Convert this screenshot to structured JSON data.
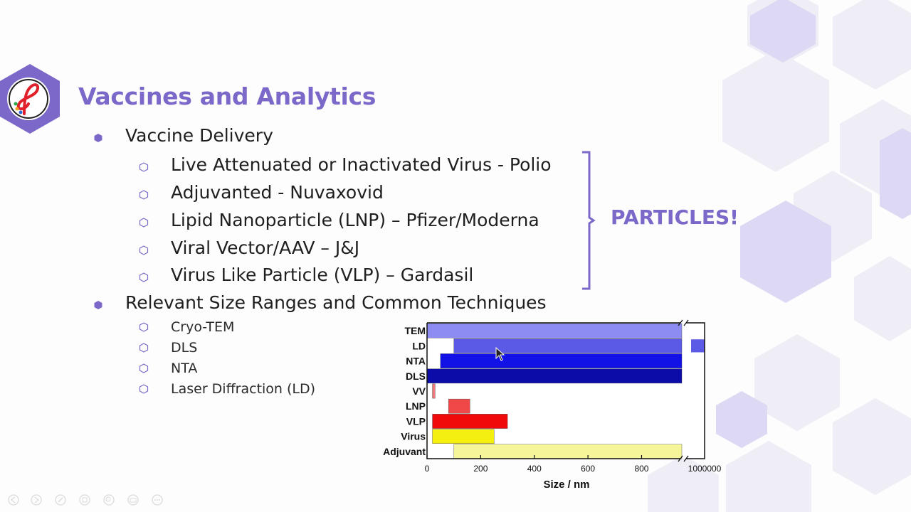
{
  "slide": {
    "title": "Vaccines and Analytics",
    "particles_label": "PARTICLES!",
    "accent_color": "#7b68c9",
    "bullets": [
      {
        "text": "Vaccine Delivery",
        "subitems": [
          "Live Attenuated or Inactivated Virus - Polio",
          "Adjuvanted - Nuvaxovid",
          "Lipid Nanoparticle (LNP) – Pfizer/Moderna",
          "Viral Vector/AAV – J&J",
          "Virus Like Particle (VLP) – Gardasil"
        ]
      },
      {
        "text": "Relevant Size Ranges and Common Techniques",
        "subitems": [
          "Cryo-TEM",
          "DLS",
          "NTA",
          "Laser Diffraction (LD)"
        ]
      }
    ]
  },
  "chart_data": {
    "type": "bar",
    "orientation": "horizontal-range",
    "xlabel": "Size / nm",
    "xlim": [
      0,
      950
    ],
    "xticks": [
      0,
      200,
      400,
      600,
      800
    ],
    "x_break_tick": "1000000",
    "grid": false,
    "categories": [
      "TEM",
      "LD",
      "NTA",
      "DLS",
      "VV",
      "LNP",
      "VLP",
      "Virus",
      "Adjuvant"
    ],
    "ranges": [
      {
        "label": "TEM",
        "start": 0,
        "end": 950,
        "extends_past_break": false,
        "color": "#8c8cf2"
      },
      {
        "label": "LD",
        "start": 100,
        "end": 950,
        "extends_past_break": true,
        "color": "#5a5ae6"
      },
      {
        "label": "NTA",
        "start": 50,
        "end": 950,
        "extends_past_break": false,
        "color": "#1212e6"
      },
      {
        "label": "DLS",
        "start": 1,
        "end": 950,
        "extends_past_break": false,
        "color": "#0c0ca8"
      },
      {
        "label": "VV",
        "start": 20,
        "end": 30,
        "extends_past_break": false,
        "color": "#f07878"
      },
      {
        "label": "LNP",
        "start": 80,
        "end": 160,
        "extends_past_break": false,
        "color": "#f04848"
      },
      {
        "label": "VLP",
        "start": 20,
        "end": 300,
        "extends_past_break": false,
        "color": "#f00a0a"
      },
      {
        "label": "Virus",
        "start": 20,
        "end": 250,
        "extends_past_break": false,
        "color": "#f5ef10"
      },
      {
        "label": "Adjuvant",
        "start": 100,
        "end": 950,
        "extends_past_break": false,
        "color": "#f6f59a"
      }
    ]
  }
}
